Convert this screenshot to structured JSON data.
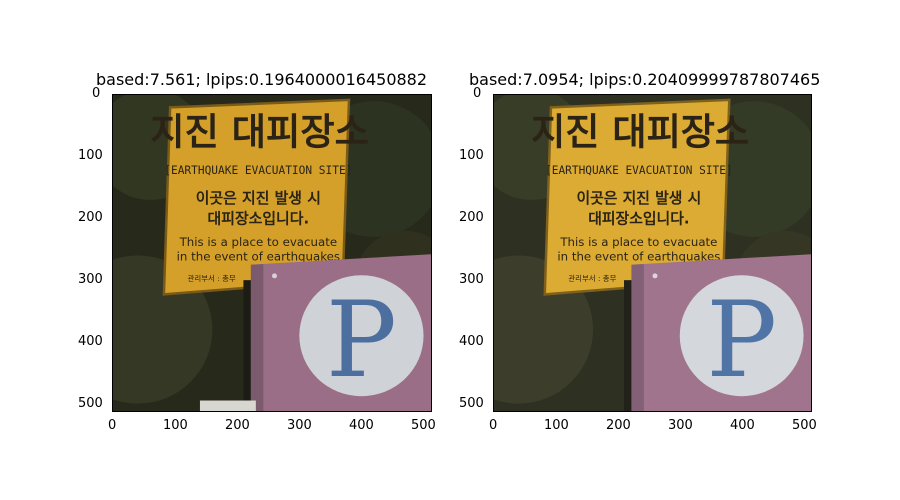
{
  "figure": {
    "panels": [
      {
        "title": "based:7.561; lpips:0.1964000016450882",
        "brightness": "normal",
        "x_ticks": [
          "0",
          "100",
          "200",
          "300",
          "400",
          "500"
        ],
        "y_ticks": [
          "0",
          "100",
          "200",
          "300",
          "400",
          "500"
        ]
      },
      {
        "title": "based:7.0954; lpips:0.20409999787807465",
        "brightness": "slightly brighter",
        "x_ticks": [
          "0",
          "100",
          "200",
          "300",
          "400",
          "500"
        ],
        "y_ticks": [
          "0",
          "100",
          "200",
          "300",
          "400",
          "500"
        ]
      }
    ]
  },
  "sign": {
    "korean_title": "지진 대피장소",
    "english_title": "[EARTHQUAKE EVACUATION SITE]",
    "korean_line1": "이곳은 지진 발생 시",
    "korean_line2": "대피장소입니다.",
    "english_line1": "This is a place to evacuate",
    "english_line2": "in the event of earthquakes",
    "dept": "관리부서 : 총무",
    "parking_letter": "P",
    "colors": {
      "sign_yellow": "#d9a62a",
      "sign_text": "#2b2416",
      "parking_pink": "#9a6e86",
      "parking_circle": "#cfd2d6",
      "parking_letter": "#4c6fa0",
      "foliage": "#2a2d1c"
    }
  }
}
